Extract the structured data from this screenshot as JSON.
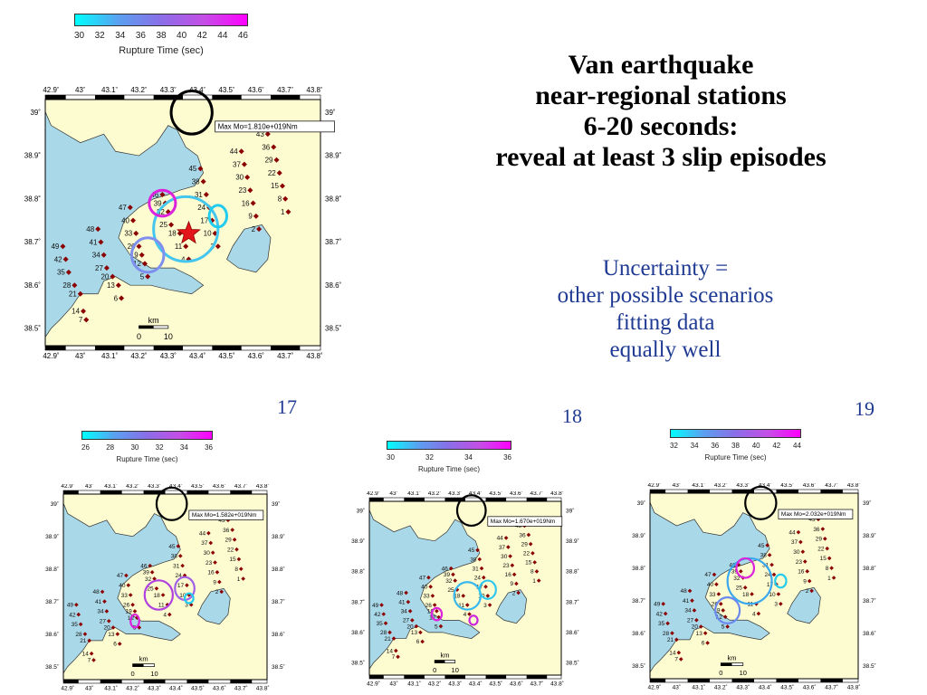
{
  "title": {
    "line1": "Van earthquake",
    "line2": "near-regional stations",
    "line3": "6-20 seconds:",
    "line4": "reveal at least 3 slip episodes"
  },
  "note": {
    "line1": "Uncertainty =",
    "line2": "other possible scenarios",
    "line3": "fitting data",
    "line4": "equally well"
  },
  "figure_numbers": [
    "17",
    "18",
    "19"
  ],
  "lon_labels": [
    "42.9˚",
    "43˚",
    "43.1˚",
    "43.2˚",
    "43.3˚",
    "43.4˚",
    "43.5˚",
    "43.6˚",
    "43.7˚",
    "43.8˚"
  ],
  "lat_labels": [
    "39˚",
    "38.9˚",
    "38.8˚",
    "38.7˚",
    "38.6˚",
    "38.5˚"
  ],
  "scale": {
    "unit": "km",
    "zero": "0",
    "ten": "10"
  },
  "colorbar_label": "Rupture Time (sec)",
  "colors": {
    "land": "#fdfbd0",
    "water": "#a9d8e8",
    "station": "#8b0000",
    "epicenter": "#e3151b",
    "accent_text": "#1f3a93"
  },
  "maps": [
    {
      "id": "main",
      "maxmo": "Max Mo=1.810e+019Nm",
      "colorbar_ticks": [
        "30",
        "32",
        "34",
        "36",
        "38",
        "40",
        "42",
        "44",
        "46"
      ],
      "show_epicenter": true,
      "circles": [
        {
          "lon": 43.36,
          "lat": 38.73,
          "rlon": 0.11,
          "rlat": 0.075,
          "color": "#45c6ee"
        },
        {
          "lon": 43.28,
          "lat": 38.79,
          "rlon": 0.045,
          "rlat": 0.03,
          "color": "#dd22dd"
        },
        {
          "lon": 43.23,
          "lat": 38.67,
          "rlon": 0.055,
          "rlat": 0.04,
          "color": "#7f8fee"
        },
        {
          "lon": 43.47,
          "lat": 38.76,
          "rlon": 0.03,
          "rlat": 0.025,
          "color": "#22ccee"
        },
        {
          "lon": 43.38,
          "lat": 39.0,
          "rlon": 0.07,
          "rlat": 0.05,
          "color": "#000000"
        }
      ]
    },
    {
      "id": "fig17",
      "maxmo": "Max Mo=1.582e+019Nm",
      "colorbar_ticks": [
        "26",
        "28",
        "30",
        "32",
        "34",
        "36"
      ],
      "show_epicenter": false,
      "circles": [
        {
          "lon": 43.32,
          "lat": 38.72,
          "rlon": 0.065,
          "rlat": 0.045,
          "color": "#b040e0"
        },
        {
          "lon": 43.44,
          "lat": 38.74,
          "rlon": 0.045,
          "rlat": 0.035,
          "color": "#a060e8"
        },
        {
          "lon": 43.21,
          "lat": 38.64,
          "rlon": 0.02,
          "rlat": 0.02,
          "color": "#dd22dd"
        },
        {
          "lon": 43.46,
          "lat": 38.71,
          "rlon": 0.02,
          "rlat": 0.015,
          "color": "#22ccee"
        },
        {
          "lon": 43.38,
          "lat": 39.0,
          "rlon": 0.07,
          "rlat": 0.05,
          "color": "#000000"
        }
      ]
    },
    {
      "id": "fig18",
      "maxmo": "Max Mo=1.670e+019Nm",
      "colorbar_ticks": [
        "30",
        "32",
        "34",
        "36"
      ],
      "show_epicenter": false,
      "circles": [
        {
          "lon": 43.36,
          "lat": 38.72,
          "rlon": 0.065,
          "rlat": 0.045,
          "color": "#38b8ee"
        },
        {
          "lon": 43.46,
          "lat": 38.74,
          "rlon": 0.04,
          "rlat": 0.03,
          "color": "#30c8ee"
        },
        {
          "lon": 43.21,
          "lat": 38.66,
          "rlon": 0.025,
          "rlat": 0.02,
          "color": "#dd22dd"
        },
        {
          "lon": 43.39,
          "lat": 38.64,
          "rlon": 0.02,
          "rlat": 0.015,
          "color": "#cc22dd"
        },
        {
          "lon": 43.38,
          "lat": 39.0,
          "rlon": 0.07,
          "rlat": 0.05,
          "color": "#000000"
        }
      ]
    },
    {
      "id": "fig19",
      "maxmo": "Max Mo=2.032e+019Nm",
      "colorbar_ticks": [
        "32",
        "34",
        "36",
        "38",
        "40",
        "42",
        "44"
      ],
      "show_epicenter": false,
      "circles": [
        {
          "lon": 43.33,
          "lat": 38.76,
          "rlon": 0.1,
          "rlat": 0.07,
          "color": "#3aa8ee"
        },
        {
          "lon": 43.31,
          "lat": 38.8,
          "rlon": 0.04,
          "rlat": 0.03,
          "color": "#dd22dd"
        },
        {
          "lon": 43.23,
          "lat": 38.67,
          "rlon": 0.055,
          "rlat": 0.04,
          "color": "#6a8aee"
        },
        {
          "lon": 43.47,
          "lat": 38.76,
          "rlon": 0.025,
          "rlat": 0.02,
          "color": "#22ccee"
        },
        {
          "lon": 43.38,
          "lat": 39.0,
          "rlon": 0.07,
          "rlat": 0.05,
          "color": "#000000"
        }
      ]
    }
  ],
  "stations": [
    {
      "id": "43",
      "lon": 43.64,
      "lat": 38.95
    },
    {
      "id": "36",
      "lon": 43.66,
      "lat": 38.92
    },
    {
      "id": "29",
      "lon": 43.67,
      "lat": 38.89
    },
    {
      "id": "22",
      "lon": 43.68,
      "lat": 38.86
    },
    {
      "id": "15",
      "lon": 43.69,
      "lat": 38.83
    },
    {
      "id": "8",
      "lon": 43.7,
      "lat": 38.8
    },
    {
      "id": "1",
      "lon": 43.71,
      "lat": 38.77
    },
    {
      "id": "44",
      "lon": 43.55,
      "lat": 38.91
    },
    {
      "id": "37",
      "lon": 43.56,
      "lat": 38.88
    },
    {
      "id": "30",
      "lon": 43.57,
      "lat": 38.85
    },
    {
      "id": "23",
      "lon": 43.58,
      "lat": 38.82
    },
    {
      "id": "16",
      "lon": 43.59,
      "lat": 38.79
    },
    {
      "id": "9",
      "lon": 43.6,
      "lat": 38.76
    },
    {
      "id": "2",
      "lon": 43.61,
      "lat": 38.73
    },
    {
      "id": "45",
      "lon": 43.41,
      "lat": 38.87
    },
    {
      "id": "38",
      "lon": 43.42,
      "lat": 38.84
    },
    {
      "id": "31",
      "lon": 43.43,
      "lat": 38.81
    },
    {
      "id": "24",
      "lon": 43.44,
      "lat": 38.78
    },
    {
      "id": "17",
      "lon": 43.45,
      "lat": 38.75
    },
    {
      "id": "10",
      "lon": 43.46,
      "lat": 38.72
    },
    {
      "id": "3",
      "lon": 43.47,
      "lat": 38.69
    },
    {
      "id": "46",
      "lon": 43.28,
      "lat": 38.81
    },
    {
      "id": "39",
      "lon": 43.29,
      "lat": 38.79
    },
    {
      "id": "32",
      "lon": 43.3,
      "lat": 38.77
    },
    {
      "id": "25",
      "lon": 43.31,
      "lat": 38.74
    },
    {
      "id": "18",
      "lon": 43.34,
      "lat": 38.72
    },
    {
      "id": "11",
      "lon": 43.36,
      "lat": 38.69
    },
    {
      "id": "4",
      "lon": 43.37,
      "lat": 38.66
    },
    {
      "id": "47",
      "lon": 43.17,
      "lat": 38.78
    },
    {
      "id": "40",
      "lon": 43.18,
      "lat": 38.75
    },
    {
      "id": "33",
      "lon": 43.19,
      "lat": 38.72
    },
    {
      "id": "26",
      "lon": 43.2,
      "lat": 38.69
    },
    {
      "id": "19",
      "lon": 43.21,
      "lat": 38.67
    },
    {
      "id": "12",
      "lon": 43.22,
      "lat": 38.65
    },
    {
      "id": "5",
      "lon": 43.23,
      "lat": 38.62
    },
    {
      "id": "48",
      "lon": 43.06,
      "lat": 38.73
    },
    {
      "id": "41",
      "lon": 43.07,
      "lat": 38.7
    },
    {
      "id": "34",
      "lon": 43.08,
      "lat": 38.67
    },
    {
      "id": "27",
      "lon": 43.09,
      "lat": 38.64
    },
    {
      "id": "20",
      "lon": 43.11,
      "lat": 38.62
    },
    {
      "id": "13",
      "lon": 43.13,
      "lat": 38.6
    },
    {
      "id": "6",
      "lon": 43.14,
      "lat": 38.57
    },
    {
      "id": "49",
      "lon": 42.94,
      "lat": 38.69
    },
    {
      "id": "42",
      "lon": 42.95,
      "lat": 38.66
    },
    {
      "id": "35",
      "lon": 42.96,
      "lat": 38.63
    },
    {
      "id": "28",
      "lon": 42.98,
      "lat": 38.6
    },
    {
      "id": "21",
      "lon": 43.0,
      "lat": 38.58
    },
    {
      "id": "14",
      "lon": 43.01,
      "lat": 38.54
    },
    {
      "id": "7",
      "lon": 43.02,
      "lat": 38.52
    }
  ]
}
